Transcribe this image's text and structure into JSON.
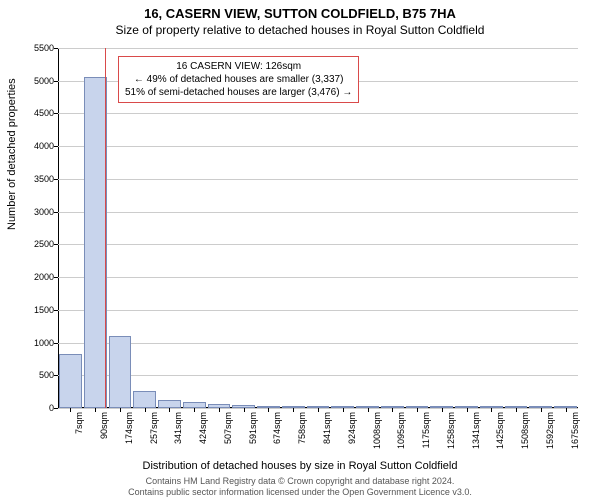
{
  "title_line1": "16, CASERN VIEW, SUTTON COLDFIELD, B75 7HA",
  "title_line2": "Size of property relative to detached houses in Royal Sutton Coldfield",
  "y_axis_label": "Number of detached properties",
  "x_axis_label": "Distribution of detached houses by size in Royal Sutton Coldfield",
  "footer_line1": "Contains HM Land Registry data © Crown copyright and database right 2024.",
  "footer_line2": "Contains public sector information licensed under the Open Government Licence v3.0.",
  "chart": {
    "type": "bar",
    "ylim": [
      0,
      5500
    ],
    "ytick_step": 500,
    "background_color": "#ffffff",
    "grid_color": "#cccccc",
    "bar_fill": "#c8d4ec",
    "bar_stroke": "#7a8db8",
    "marker_color": "#d94a4a",
    "categories": [
      "7sqm",
      "90sqm",
      "174sqm",
      "257sqm",
      "341sqm",
      "424sqm",
      "507sqm",
      "591sqm",
      "674sqm",
      "758sqm",
      "841sqm",
      "924sqm",
      "1008sqm",
      "1095sqm",
      "1175sqm",
      "1258sqm",
      "1341sqm",
      "1425sqm",
      "1508sqm",
      "1592sqm",
      "1675sqm"
    ],
    "values": [
      830,
      5050,
      1100,
      260,
      120,
      90,
      60,
      40,
      30,
      15,
      10,
      8,
      5,
      3,
      2,
      2,
      1,
      1,
      1,
      1,
      0
    ],
    "marker_index": 1.4,
    "marker_value_sqm": 126,
    "info_box": {
      "line1": "16 CASERN VIEW: 126sqm",
      "line2": "← 49% of detached houses are smaller (3,337)",
      "line3": "51% of semi-detached houses are larger (3,476) →"
    },
    "title_fontsize": 13,
    "subtitle_fontsize": 12,
    "label_fontsize": 11,
    "tick_fontsize": 9
  }
}
